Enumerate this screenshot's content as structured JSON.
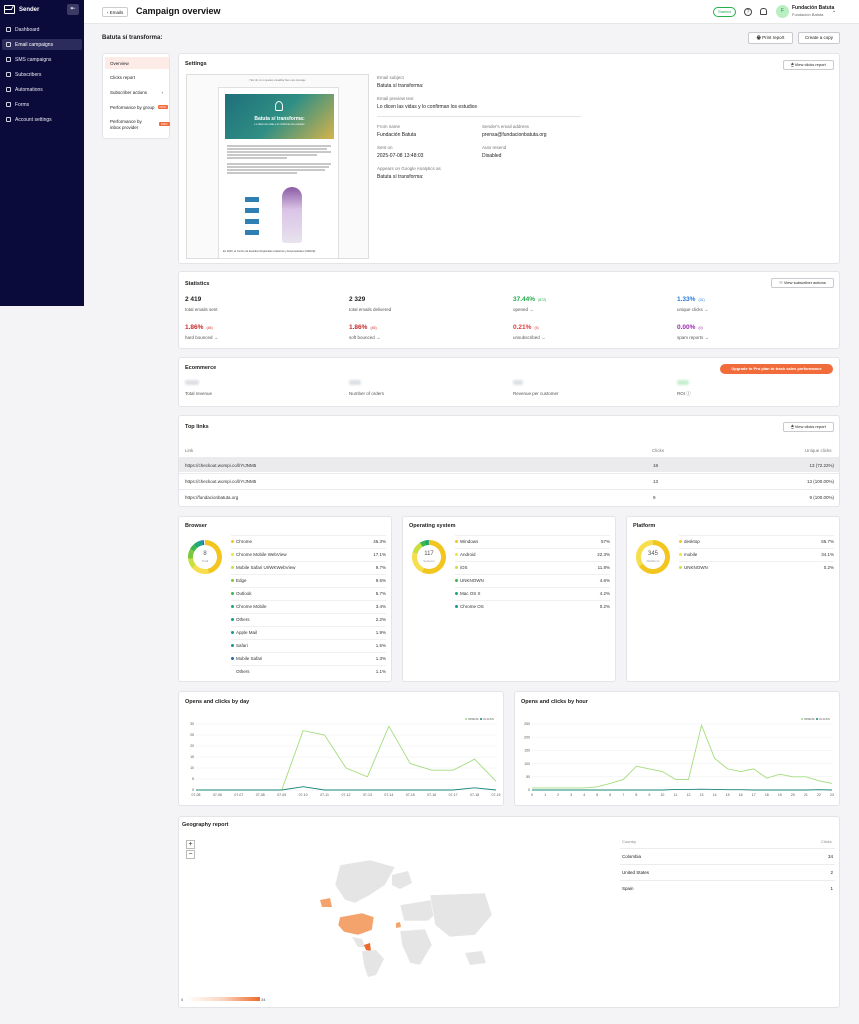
{
  "sidebar": {
    "brand": "Sender",
    "items": [
      {
        "label": "Dashboard",
        "icon": "home-icon"
      },
      {
        "label": "Email campaigns",
        "icon": "mail-icon"
      },
      {
        "label": "SMS campaigns",
        "icon": "sms-icon"
      },
      {
        "label": "Subscribers",
        "icon": "users-icon"
      },
      {
        "label": "Automations",
        "icon": "automation-icon"
      },
      {
        "label": "Forms",
        "icon": "forms-icon"
      },
      {
        "label": "Account settings",
        "icon": "gear-icon"
      }
    ]
  },
  "header": {
    "back": "Emails",
    "title": "Campaign overview",
    "status": "Started",
    "account_name": "Fundación Batuta",
    "account_sub": "Fundación Batuta",
    "avatar": "F"
  },
  "campaign": {
    "name": "Batuta sí transforma:",
    "print": "Print report",
    "copy": "Create a copy"
  },
  "menu": [
    {
      "label": "Overview"
    },
    {
      "label": "Clicks report"
    },
    {
      "label": "Subscriber actions"
    },
    {
      "label": "Performance by group",
      "pro": "PRO"
    },
    {
      "label": "Performance by inbox provider",
      "pro": "PRO"
    }
  ],
  "settings": {
    "title": "Settings",
    "view_clicks": "View clicks report",
    "preview": {
      "top": "Haz clic si no puedes visualizar bien este mensaje",
      "hero_title": "Batuta sí transforma:",
      "hero_sub": "Lo dicen las vidas y lo confirman los estudios",
      "caption": "En 2026, el Centro de Estudios Regionales Cafeteros y Empresariales (CRECE)"
    },
    "subject_label": "Email subject",
    "subject": "Batuta sí transforma:",
    "preview_label": "Email preview text",
    "preview_text": "Lo dicen las vidas y lo confirman los estudios",
    "from_label": "From name",
    "from": "Fundación Batuta",
    "sender_label": "Sender's email address",
    "sender": "prensa@fundacionbatuta.org",
    "sent_label": "Sent on",
    "sent": "2025-07-08 13:48:03",
    "resend_label": "Auto resend",
    "resend": "Disabled",
    "ga_label": "Appears on Google Analytics as",
    "ga": "Batuta sí transforma:"
  },
  "statistics": {
    "title": "Statistics",
    "action": "View subscriber actions",
    "sent": {
      "value": "2 419",
      "label": "total emails sent"
    },
    "delivered": {
      "value": "2 329",
      "label": "total emails delivered"
    },
    "opened": {
      "value": "37.44%",
      "count": "(872)",
      "label": "opened",
      "color": "#23a94b"
    },
    "clicks": {
      "value": "1.33%",
      "count": "(31)",
      "label": "unique clicks",
      "color": "#2b78d6"
    },
    "hard": {
      "value": "1.86%",
      "count": "(45)",
      "label": "hard bounced",
      "color": "#c62828"
    },
    "soft": {
      "value": "1.86%",
      "count": "(45)",
      "label": "soft bounced",
      "color": "#c62828"
    },
    "unsub": {
      "value": "0.21%",
      "count": "(5)",
      "label": "unsubscribed",
      "color": "#e53935"
    },
    "spam": {
      "value": "0.00%",
      "count": "(0)",
      "label": "spam reports",
      "color": "#9c27b0"
    }
  },
  "ecommerce": {
    "title": "Ecommerce",
    "upgrade": "Upgrade to Pro plan to track sales performance",
    "labels": [
      "Total revenue",
      "Number of orders",
      "Revenue per customer",
      "ROI"
    ]
  },
  "top_links": {
    "title": "Top links",
    "action": "View clicks report",
    "headers": [
      "Link",
      "Clicks",
      "Unique clicks"
    ],
    "rows": [
      {
        "link": "https://checkout.wompi.co/l/YIJNM5",
        "clicks": "18",
        "unique": "13 (72.22%)"
      },
      {
        "link": "https://checkout.wompi.co/l/YIJNM5",
        "clicks": "13",
        "unique": "13 (100.00%)"
      },
      {
        "link": "https://fundacionbatuta.org",
        "clicks": "9",
        "unique": "9 (100.00%)"
      }
    ]
  },
  "browser": {
    "title": "Browser",
    "total": "8",
    "total_label": "Total",
    "items": [
      {
        "name": "Chrome",
        "pct": "46.3%",
        "color": "#f2c51f",
        "share": 46.3
      },
      {
        "name": "Chrome Mobile WebView",
        "pct": "17.1%",
        "color": "#f7de4c",
        "share": 17.1
      },
      {
        "name": "Mobile Safari UI/WKWebView",
        "pct": "9.7%",
        "color": "#c9df3e",
        "share": 9.7
      },
      {
        "name": "Edge",
        "pct": "9.5%",
        "color": "#7cc740",
        "share": 9.5
      },
      {
        "name": "Outlook",
        "pct": "5.7%",
        "color": "#3fb54d",
        "share": 5.7
      },
      {
        "name": "Chrome Mobile",
        "pct": "3.4%",
        "color": "#1ca86b",
        "share": 3.4
      },
      {
        "name": "Others",
        "pct": "2.2%",
        "color": "#15a085",
        "share": 2.2
      },
      {
        "name": "Apple Mail",
        "pct": "1.9%",
        "color": "#17998f",
        "share": 1.9
      },
      {
        "name": "Safari",
        "pct": "1.5%",
        "color": "#1c8fa0",
        "share": 1.5
      },
      {
        "name": "Mobile Safari",
        "pct": "1.3%",
        "color": "#2468a8",
        "share": 1.3
      },
      {
        "name": "Others",
        "pct": "1.1%",
        "color": "#ffffff",
        "share": 1.1
      }
    ]
  },
  "os": {
    "title": "Operating system",
    "total": "117",
    "total_label": "Systems",
    "items": [
      {
        "name": "Windows",
        "pct": "57%",
        "color": "#f2c51f",
        "share": 57
      },
      {
        "name": "Android",
        "pct": "22.3%",
        "color": "#f7de4c",
        "share": 22.3
      },
      {
        "name": "iOS",
        "pct": "11.8%",
        "color": "#c9df3e",
        "share": 11.8
      },
      {
        "name": "UNKNOWN",
        "pct": "4.6%",
        "color": "#3fb54d",
        "share": 4.6
      },
      {
        "name": "Mac OS X",
        "pct": "4.2%",
        "color": "#1ca86b",
        "share": 4.2
      },
      {
        "name": "Chrome OS",
        "pct": "0.2%",
        "color": "#17998f",
        "share": 0.2
      }
    ]
  },
  "platform": {
    "title": "Platform",
    "total": "345",
    "total_label": "Platforms",
    "items": [
      {
        "name": "desktop",
        "pct": "65.7%",
        "color": "#f2c51f",
        "share": 65.7
      },
      {
        "name": "mobile",
        "pct": "34.1%",
        "color": "#f7de4c",
        "share": 34.1
      },
      {
        "name": "UNKNOWN",
        "pct": "0.2%",
        "color": "#c9df3e",
        "share": 0.2
      }
    ]
  },
  "chart_data": [
    {
      "type": "line",
      "title": "Opens and clicks by day",
      "x": [
        "07-05",
        "07-06",
        "07-07",
        "07-08",
        "07-09",
        "07-10",
        "07-11",
        "07-12",
        "07-13",
        "07-14",
        "07-15",
        "07-16",
        "07-17",
        "07-18",
        "07-19"
      ],
      "series": [
        {
          "name": "OPENS",
          "color": "#a4dc7c",
          "values": [
            0,
            0,
            0,
            0,
            0,
            27,
            25,
            10,
            6,
            29,
            12,
            9,
            9,
            14,
            4
          ]
        },
        {
          "name": "CLICKS",
          "color": "#16857a",
          "values": [
            0,
            0,
            0,
            0,
            0,
            1.5,
            0,
            0,
            0,
            0,
            0,
            0,
            0,
            1,
            0
          ]
        }
      ],
      "ylim": [
        0,
        30
      ],
      "yticks": [
        0,
        5,
        10,
        15,
        20,
        25,
        30
      ]
    },
    {
      "type": "line",
      "title": "Opens and clicks by hour",
      "x": [
        "0",
        "1",
        "2",
        "3",
        "4",
        "5",
        "6",
        "7",
        "8",
        "9",
        "10",
        "11",
        "12",
        "13",
        "14",
        "15",
        "16",
        "17",
        "18",
        "19",
        "20",
        "21",
        "22",
        "23"
      ],
      "series": [
        {
          "name": "OPENS",
          "color": "#a4dc7c",
          "values": [
            8,
            8,
            8,
            8,
            8,
            12,
            25,
            40,
            90,
            80,
            70,
            40,
            40,
            245,
            120,
            80,
            70,
            80,
            45,
            60,
            50,
            50,
            35,
            25
          ]
        },
        {
          "name": "CLICKS",
          "color": "#16857a",
          "values": [
            0,
            0,
            0,
            0,
            0,
            0,
            0,
            0,
            0,
            0,
            0,
            2,
            2,
            3,
            2,
            1,
            1,
            0,
            0,
            0,
            0,
            0,
            1,
            0
          ]
        }
      ],
      "ylim": [
        0,
        250
      ],
      "yticks": [
        0,
        50,
        100,
        150,
        200,
        250
      ]
    }
  ],
  "geography": {
    "title": "Geography report",
    "headers": [
      "Country",
      "Clicks"
    ],
    "rows": [
      {
        "country": "Colombia",
        "clicks": "34"
      },
      {
        "country": "United States",
        "clicks": "2"
      },
      {
        "country": "Spain",
        "clicks": "1"
      }
    ],
    "scale_min": "0",
    "scale_max": "34",
    "zoom_in": "+",
    "zoom_out": "−"
  }
}
